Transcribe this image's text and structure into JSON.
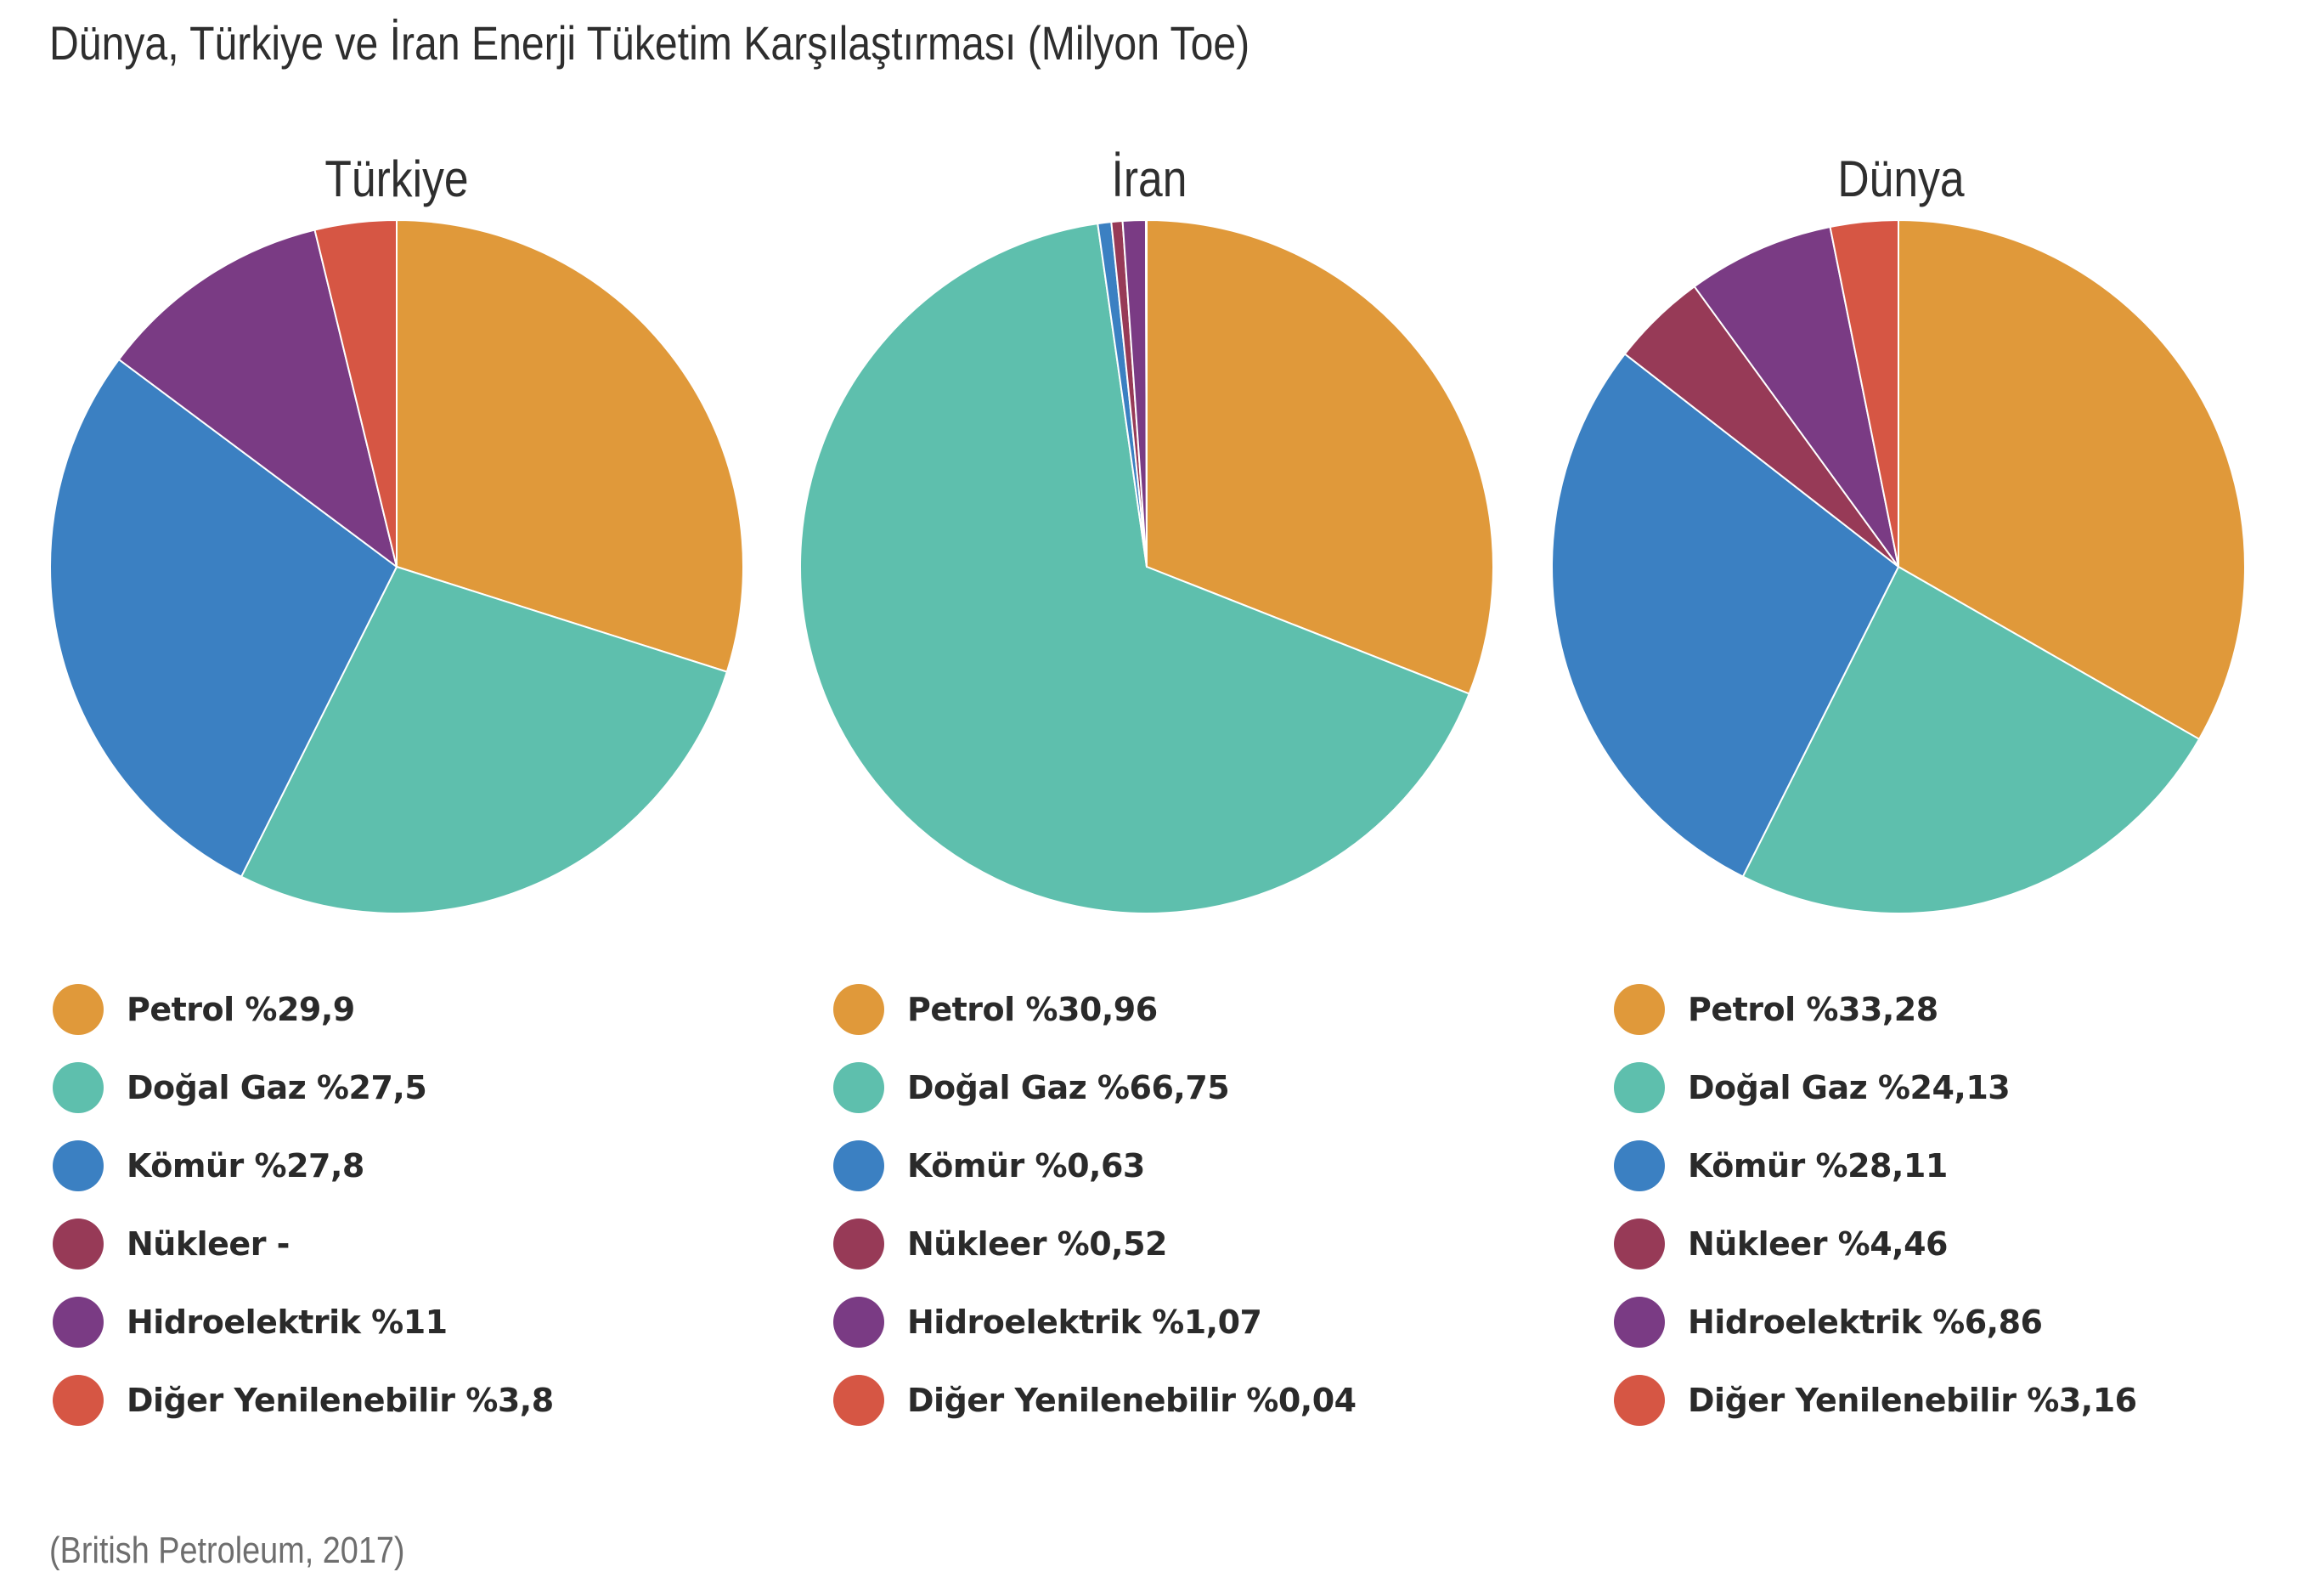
{
  "title": "Dünya, Türkiye ve İran Enerji Tüketim Karşılaştırması (Milyon Toe)",
  "source": "(British Petroleum, 2017)",
  "colors": {
    "petrol": "#e0993a",
    "dogal_gaz": "#5ebfad",
    "komur": "#3b80c2",
    "nukleer": "#973a57",
    "hidroelektrik": "#7a3b84",
    "diger": "#d65644"
  },
  "chart_data": [
    {
      "type": "pie",
      "title": "Türkiye",
      "categories": [
        "Petrol",
        "Doğal Gaz",
        "Kömür",
        "Nükleer",
        "Hidroelektrik",
        "Diğer Yenilenebilir"
      ],
      "values": [
        29.9,
        27.5,
        27.8,
        0,
        11,
        3.8
      ],
      "legend_labels": [
        "Petrol %29,9",
        "Doğal Gaz %27,5",
        "Kömür %27,8",
        "Nükleer -",
        "Hidroelektrik %11",
        "Diğer Yenilenebilir %3,8"
      ]
    },
    {
      "type": "pie",
      "title": "İran",
      "categories": [
        "Petrol",
        "Doğal Gaz",
        "Kömür",
        "Nükleer",
        "Hidroelektrik",
        "Diğer Yenilenebilir"
      ],
      "values": [
        30.96,
        66.75,
        0.63,
        0.52,
        1.07,
        0.04
      ],
      "legend_labels": [
        "Petrol %30,96",
        "Doğal Gaz %66,75",
        "Kömür %0,63",
        "Nükleer %0,52",
        "Hidroelektrik %1,07",
        "Diğer Yenilenebilir %0,04"
      ]
    },
    {
      "type": "pie",
      "title": "Dünya",
      "categories": [
        "Petrol",
        "Doğal Gaz",
        "Kömür",
        "Nükleer",
        "Hidroelektrik",
        "Diğer Yenilenebilir"
      ],
      "values": [
        33.28,
        24.13,
        28.11,
        4.46,
        6.86,
        3.16
      ],
      "legend_labels": [
        "Petrol %33,28",
        "Doğal Gaz %24,13",
        "Kömür %28,11",
        "Nükleer %4,46",
        "Hidroelektrik %6,86",
        "Diğer Yenilenebilir %3,16"
      ]
    }
  ]
}
